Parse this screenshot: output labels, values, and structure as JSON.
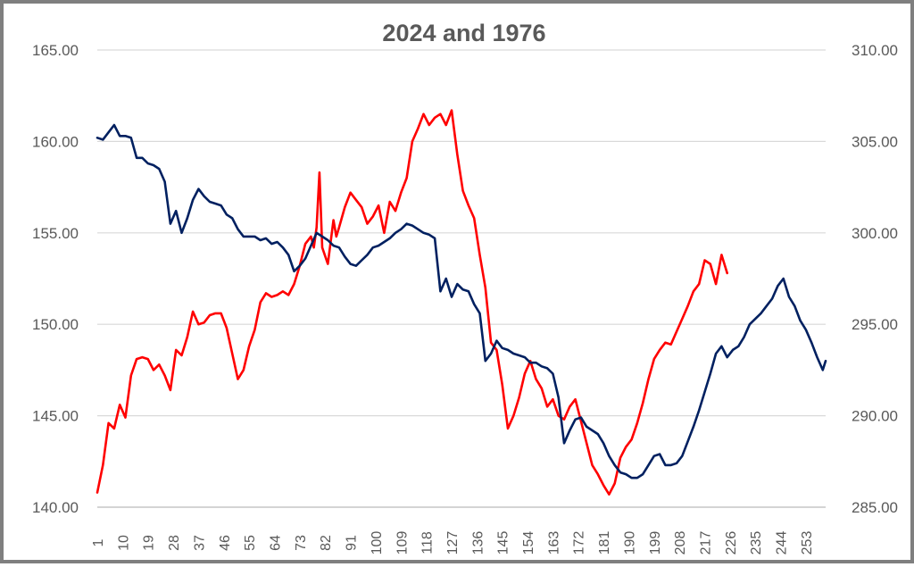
{
  "chart_data": {
    "type": "line",
    "title": "2024 and 1976",
    "xlabel": "",
    "ylabel": "",
    "left_axis": {
      "min": 140,
      "max": 165,
      "ticks": [
        "140.00",
        "145.00",
        "150.00",
        "155.00",
        "160.00",
        "165.00"
      ]
    },
    "right_axis": {
      "min": 285,
      "max": 310,
      "ticks": [
        "285.00",
        "290.00",
        "295.00",
        "300.00",
        "305.00",
        "310.00"
      ]
    },
    "x_range": [
      1,
      260
    ],
    "x_ticks": [
      "1",
      "10",
      "19",
      "28",
      "37",
      "46",
      "55",
      "64",
      "73",
      "82",
      "91",
      "100",
      "109",
      "118",
      "127",
      "136",
      "145",
      "154",
      "163",
      "172",
      "181",
      "190",
      "199",
      "208",
      "217",
      "226",
      "235",
      "244",
      "253"
    ],
    "grid": true,
    "legend": "none",
    "series": [
      {
        "name": "1976",
        "axis": "left",
        "color": "#ff0000",
        "x": [
          1,
          3,
          5,
          7,
          9,
          11,
          13,
          15,
          17,
          19,
          21,
          23,
          25,
          27,
          29,
          31,
          33,
          35,
          37,
          39,
          41,
          43,
          45,
          47,
          49,
          51,
          53,
          55,
          57,
          59,
          61,
          63,
          65,
          67,
          69,
          71,
          73,
          75,
          77,
          78,
          79,
          80,
          81,
          83,
          85,
          86,
          87,
          89,
          91,
          93,
          95,
          97,
          99,
          101,
          103,
          105,
          107,
          109,
          111,
          113,
          115,
          117,
          119,
          121,
          123,
          125,
          127,
          129,
          131,
          133,
          135,
          137,
          139,
          141,
          143,
          145,
          147,
          149,
          151,
          153,
          155,
          157,
          159,
          161,
          163,
          165,
          167,
          169,
          171,
          173,
          175,
          177,
          179,
          181,
          183,
          185,
          187,
          189,
          191,
          193,
          195,
          197,
          199,
          201,
          203,
          205,
          207,
          209,
          211,
          213,
          215,
          217,
          219,
          221,
          223,
          225
        ],
        "values": [
          140.8,
          142.3,
          144.6,
          144.3,
          145.6,
          144.9,
          147.2,
          148.1,
          148.2,
          148.1,
          147.5,
          147.8,
          147.2,
          146.4,
          148.6,
          148.3,
          149.3,
          150.7,
          150.0,
          150.1,
          150.5,
          150.6,
          150.6,
          149.8,
          148.4,
          147.0,
          147.5,
          148.8,
          149.7,
          151.2,
          151.7,
          151.5,
          151.6,
          151.8,
          151.6,
          152.2,
          153.2,
          154.4,
          154.8,
          154.2,
          155.3,
          158.3,
          154.2,
          153.3,
          155.7,
          154.8,
          155.3,
          156.4,
          157.2,
          156.8,
          156.4,
          155.5,
          155.9,
          156.5,
          155.0,
          156.7,
          156.2,
          157.2,
          158.0,
          160.0,
          160.7,
          161.5,
          160.9,
          161.3,
          161.5,
          160.9,
          161.7,
          159.3,
          157.3,
          156.5,
          155.8,
          153.8,
          152.0,
          149.0,
          148.6,
          146.7,
          144.3,
          145.0,
          146.0,
          147.3,
          148.0,
          147.0,
          146.5,
          145.5,
          145.9,
          145.0,
          144.8,
          145.5,
          145.9,
          144.7,
          143.5,
          142.3,
          141.8,
          141.2,
          140.7,
          141.3,
          142.7,
          143.3,
          143.7,
          144.6,
          145.7,
          147.0,
          148.1,
          148.6,
          149.0,
          148.9,
          149.6,
          150.3,
          151.0,
          151.8,
          152.2,
          153.5,
          153.3,
          152.2,
          153.8,
          152.8
        ]
      },
      {
        "name": "2024",
        "axis": "right",
        "color": "#002060",
        "x": [
          1,
          3,
          5,
          7,
          9,
          11,
          13,
          15,
          17,
          19,
          21,
          23,
          25,
          27,
          29,
          31,
          33,
          35,
          37,
          39,
          41,
          43,
          45,
          47,
          49,
          51,
          53,
          55,
          57,
          59,
          61,
          63,
          65,
          67,
          69,
          71,
          73,
          75,
          77,
          79,
          81,
          83,
          85,
          87,
          89,
          91,
          93,
          95,
          97,
          99,
          101,
          103,
          105,
          107,
          109,
          111,
          113,
          115,
          117,
          119,
          121,
          123,
          125,
          127,
          129,
          131,
          133,
          135,
          137,
          139,
          141,
          143,
          145,
          147,
          149,
          151,
          153,
          155,
          157,
          159,
          161,
          163,
          165,
          167,
          169,
          171,
          173,
          175,
          177,
          179,
          181,
          183,
          185,
          187,
          189,
          191,
          193,
          195,
          197,
          199,
          201,
          203,
          205,
          207,
          209,
          211,
          213,
          215,
          217,
          219,
          221,
          223,
          225,
          227,
          229,
          231,
          233,
          235,
          237,
          239,
          241,
          243,
          245,
          247,
          249,
          251,
          253,
          255,
          257,
          259,
          260
        ],
        "values": [
          305.2,
          305.1,
          305.5,
          305.9,
          305.3,
          305.3,
          305.2,
          304.1,
          304.1,
          303.8,
          303.7,
          303.5,
          302.8,
          300.5,
          301.2,
          300.0,
          300.8,
          301.8,
          302.4,
          302.0,
          301.7,
          301.6,
          301.5,
          301.0,
          300.8,
          300.2,
          299.8,
          299.8,
          299.8,
          299.6,
          299.7,
          299.4,
          299.5,
          299.2,
          298.8,
          297.9,
          298.2,
          298.6,
          299.3,
          300.0,
          299.8,
          299.6,
          299.3,
          299.2,
          298.7,
          298.3,
          298.2,
          298.5,
          298.8,
          299.2,
          299.3,
          299.5,
          299.7,
          300.0,
          300.2,
          300.5,
          300.4,
          300.2,
          300.0,
          299.9,
          299.7,
          296.8,
          297.5,
          296.5,
          297.2,
          296.9,
          296.8,
          296.1,
          295.6,
          293.0,
          293.4,
          294.1,
          293.7,
          293.6,
          293.4,
          293.3,
          293.2,
          292.9,
          292.9,
          292.7,
          292.6,
          292.3,
          291.0,
          288.5,
          289.2,
          289.8,
          289.9,
          289.4,
          289.2,
          289.0,
          288.5,
          287.8,
          287.3,
          286.9,
          286.8,
          286.6,
          286.6,
          286.8,
          287.3,
          287.8,
          287.9,
          287.3,
          287.3,
          287.4,
          287.8,
          288.6,
          289.4,
          290.3,
          291.3,
          292.3,
          293.4,
          293.8,
          293.2,
          293.6,
          293.8,
          294.3,
          295.0,
          295.3,
          295.6,
          296.0,
          296.4,
          297.1,
          297.5,
          296.5,
          296.0,
          295.2,
          294.7,
          294.0,
          293.2,
          292.5,
          293.0
        ]
      }
    ]
  }
}
